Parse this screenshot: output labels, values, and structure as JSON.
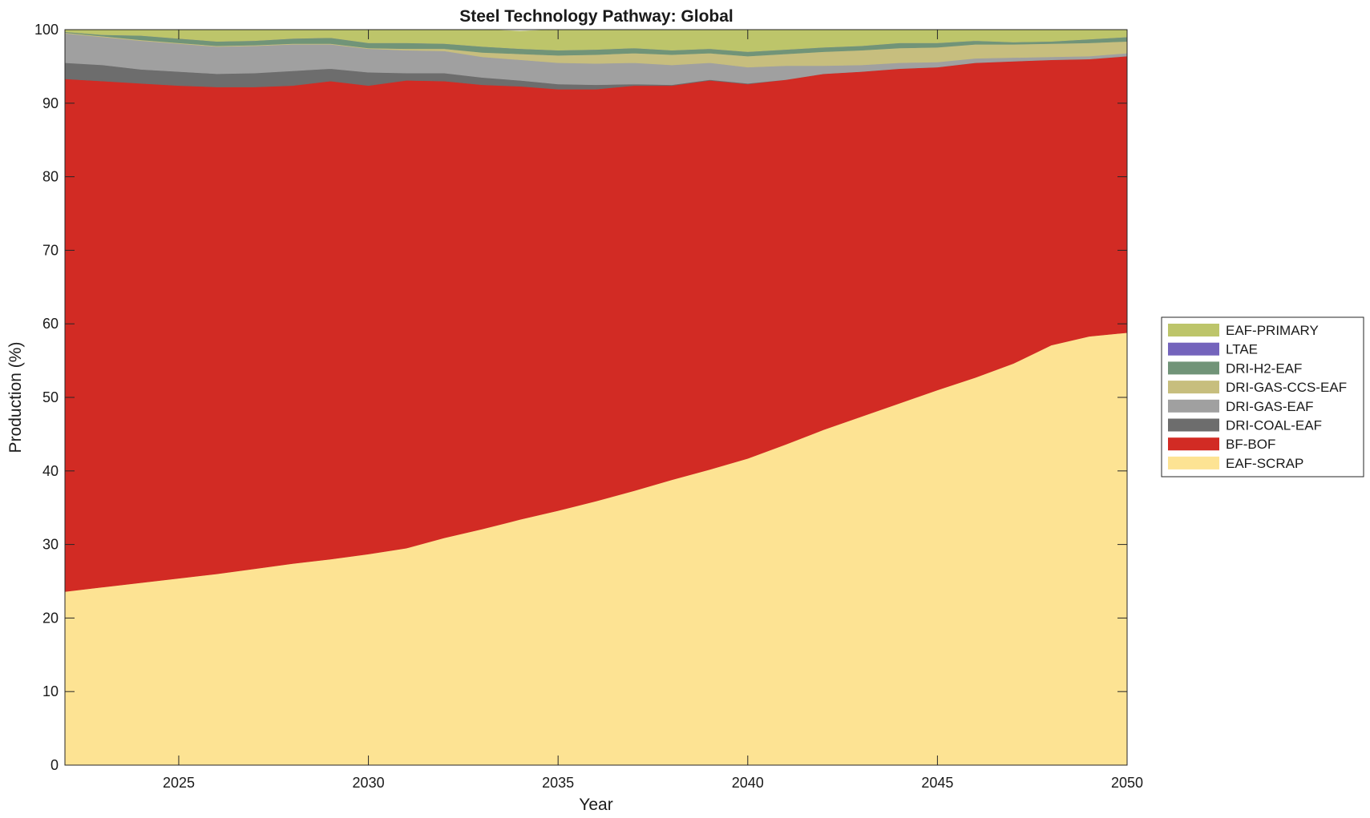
{
  "chart_data": {
    "type": "area",
    "stacked": true,
    "title": "Steel Technology Pathway: Global",
    "xlabel": "Year",
    "ylabel": "Production (%)",
    "xlim": [
      2022,
      2050
    ],
    "ylim": [
      0,
      100
    ],
    "xticks": [
      2025,
      2030,
      2035,
      2040,
      2045,
      2050
    ],
    "yticks": [
      0,
      10,
      20,
      30,
      40,
      50,
      60,
      70,
      80,
      90,
      100
    ],
    "grid": false,
    "legend_position": "right",
    "x": [
      2022,
      2023,
      2024,
      2025,
      2026,
      2027,
      2028,
      2029,
      2030,
      2031,
      2032,
      2033,
      2034,
      2035,
      2036,
      2037,
      2038,
      2039,
      2040,
      2041,
      2042,
      2043,
      2044,
      2045,
      2046,
      2047,
      2048,
      2049,
      2050
    ],
    "series": [
      {
        "name": "EAF-SCRAP",
        "color": "#FDE393",
        "values": [
          23.6,
          24.2,
          24.8,
          25.4,
          26.0,
          26.7,
          27.4,
          28.0,
          28.7,
          29.5,
          30.9,
          32.1,
          33.4,
          34.6,
          35.9,
          37.3,
          38.8,
          40.2,
          41.7,
          43.6,
          45.6,
          47.4,
          49.2,
          51.0,
          52.7,
          54.6,
          57.1,
          58.3,
          58.8
        ]
      },
      {
        "name": "BF-BOF",
        "color": "#D22B24",
        "values": [
          69.7,
          68.8,
          67.9,
          67.0,
          66.2,
          65.5,
          65.0,
          65.0,
          63.7,
          63.6,
          62.1,
          60.4,
          58.9,
          57.3,
          56.0,
          55.1,
          53.6,
          52.9,
          50.9,
          49.6,
          48.4,
          46.9,
          45.5,
          43.9,
          42.8,
          41.1,
          38.8,
          37.7,
          37.6
        ]
      },
      {
        "name": "DRI-COAL-EAF",
        "color": "#6D6D6D",
        "values": [
          2.2,
          2.2,
          1.9,
          1.9,
          1.8,
          1.9,
          2.0,
          1.7,
          1.8,
          1.0,
          1.1,
          1.0,
          0.8,
          0.7,
          0.6,
          0.2,
          0.1,
          0.1,
          0.1,
          0,
          0,
          0,
          0,
          0,
          0,
          0,
          0,
          0,
          0
        ]
      },
      {
        "name": "DRI-GAS-EAF",
        "color": "#A0A0A0",
        "values": [
          4.0,
          3.8,
          3.9,
          3.8,
          3.7,
          3.7,
          3.6,
          3.3,
          3.2,
          3.1,
          3.0,
          2.8,
          2.8,
          2.9,
          2.9,
          2.9,
          2.7,
          2.3,
          2.2,
          1.9,
          1.1,
          0.9,
          0.8,
          0.7,
          0.6,
          0.5,
          0.4,
          0.4,
          0.4
        ]
      },
      {
        "name": "DRI-GAS-CCS-EAF",
        "color": "#C7BE7E",
        "values": [
          0.1,
          0.1,
          0.1,
          0.1,
          0.1,
          0.1,
          0.1,
          0.1,
          0.1,
          0.2,
          0.3,
          0.6,
          0.8,
          1.0,
          1.2,
          1.3,
          1.4,
          1.3,
          1.5,
          1.6,
          1.9,
          2.0,
          2.0,
          2.0,
          1.9,
          1.8,
          1.8,
          1.8,
          1.6
        ]
      },
      {
        "name": "DRI-H2-EAF",
        "color": "#719478",
        "values": [
          0.1,
          0.2,
          0.6,
          0.6,
          0.6,
          0.6,
          0.7,
          0.8,
          0.7,
          0.8,
          0.7,
          0.8,
          0.7,
          0.7,
          0.7,
          0.7,
          0.6,
          0.6,
          0.6,
          0.6,
          0.6,
          0.6,
          0.7,
          0.6,
          0.5,
          0.3,
          0.3,
          0.5,
          0.6
        ]
      },
      {
        "name": "LTAE",
        "color": "#7464BC",
        "values": [
          0,
          0,
          0,
          0,
          0,
          0,
          0,
          0,
          0,
          0,
          0,
          0,
          0,
          0,
          0,
          0,
          0,
          0,
          0,
          0,
          0,
          0,
          0,
          0,
          0,
          0,
          0,
          0,
          0
        ]
      },
      {
        "name": "EAF-PRIMARY",
        "color": "#BDC56A",
        "values": [
          0.3,
          0.7,
          0.8,
          1.2,
          1.6,
          1.5,
          1.2,
          1.1,
          1.8,
          1.8,
          1.9,
          2.3,
          2.4,
          2.8,
          2.7,
          2.5,
          2.8,
          2.6,
          3.0,
          2.7,
          2.4,
          2.2,
          1.8,
          1.8,
          1.5,
          1.7,
          1.6,
          1.3,
          1.0
        ]
      }
    ],
    "legend_order": [
      "EAF-PRIMARY",
      "LTAE",
      "DRI-H2-EAF",
      "DRI-GAS-CCS-EAF",
      "DRI-GAS-EAF",
      "DRI-COAL-EAF",
      "BF-BOF",
      "EAF-SCRAP"
    ]
  }
}
